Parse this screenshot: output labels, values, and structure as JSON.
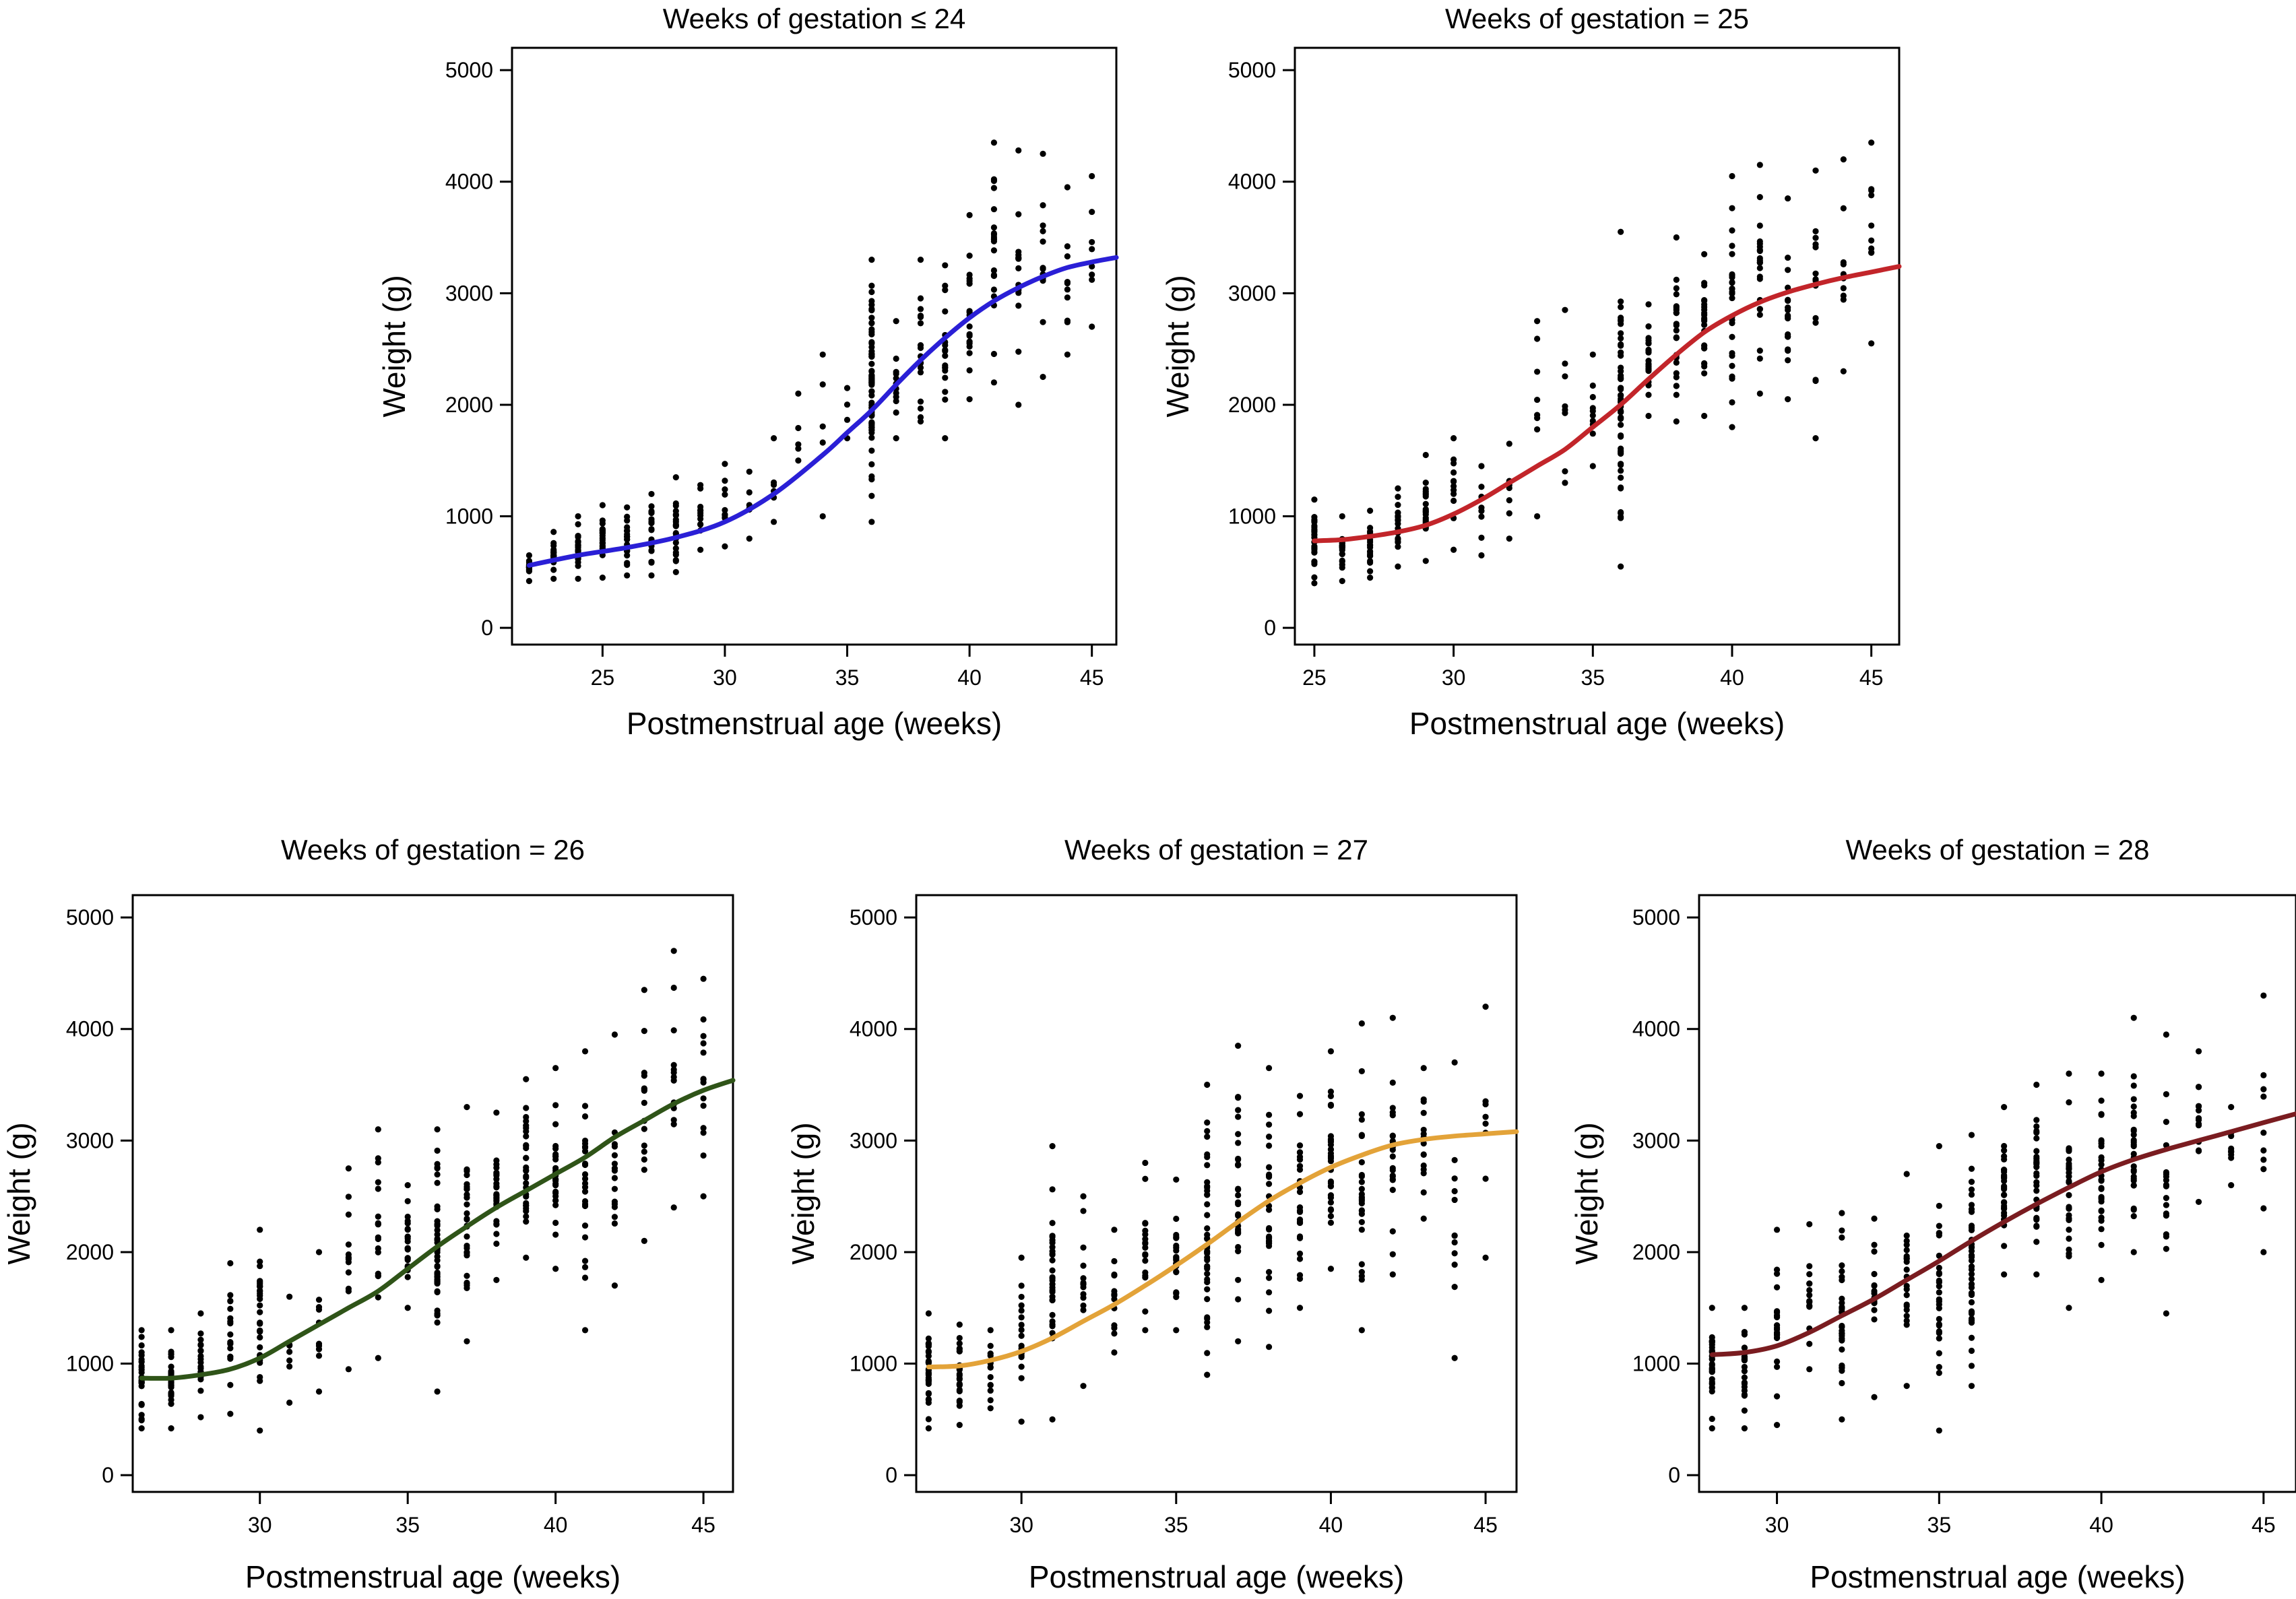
{
  "figure": {
    "accent_colors": [
      "#2a1fd6",
      "#c2252a",
      "#2f5418",
      "#e3a339",
      "#7a1c20"
    ]
  },
  "chart_data": [
    {
      "type": "scatter",
      "title": "Weeks of gestation ≤ 24",
      "xlabel": "Postmenstrual age (weeks)",
      "ylabel": "Weight (g)",
      "xlim": [
        21.3,
        46
      ],
      "ylim": [
        -150,
        5200
      ],
      "xticks": [
        25,
        30,
        35,
        40,
        45
      ],
      "yticks": [
        0,
        1000,
        2000,
        3000,
        4000,
        5000
      ],
      "fit_color": "#2a1fd6",
      "start_week": 22,
      "scatter_bins": [
        {
          "x": 22,
          "min": 420,
          "max": 650,
          "n": 20
        },
        {
          "x": 23,
          "min": 440,
          "max": 860,
          "n": 22
        },
        {
          "x": 24,
          "min": 440,
          "max": 1000,
          "n": 24
        },
        {
          "x": 25,
          "min": 450,
          "max": 1100,
          "n": 24
        },
        {
          "x": 26,
          "min": 470,
          "max": 1080,
          "n": 22
        },
        {
          "x": 27,
          "min": 470,
          "max": 1200,
          "n": 20
        },
        {
          "x": 28,
          "min": 500,
          "max": 1350,
          "n": 22
        },
        {
          "x": 29,
          "min": 700,
          "max": 1280,
          "n": 12
        },
        {
          "x": 30,
          "min": 730,
          "max": 1470,
          "n": 10
        },
        {
          "x": 31,
          "min": 800,
          "max": 1400,
          "n": 6
        },
        {
          "x": 32,
          "min": 950,
          "max": 1700,
          "n": 6
        },
        {
          "x": 33,
          "min": 1500,
          "max": 2100,
          "n": 5
        },
        {
          "x": 34,
          "min": 1000,
          "max": 2450,
          "n": 5
        },
        {
          "x": 35,
          "min": 1700,
          "max": 2150,
          "n": 4
        },
        {
          "x": 36,
          "min": 950,
          "max": 3300,
          "n": 70
        },
        {
          "x": 37,
          "min": 1700,
          "max": 2750,
          "n": 12
        },
        {
          "x": 38,
          "min": 1850,
          "max": 3300,
          "n": 18
        },
        {
          "x": 39,
          "min": 1700,
          "max": 3250,
          "n": 18
        },
        {
          "x": 40,
          "min": 2050,
          "max": 3700,
          "n": 18
        },
        {
          "x": 41,
          "min": 2200,
          "max": 4350,
          "n": 22
        },
        {
          "x": 42,
          "min": 2000,
          "max": 4280,
          "n": 16
        },
        {
          "x": 43,
          "min": 2250,
          "max": 4250,
          "n": 12
        },
        {
          "x": 44,
          "min": 2450,
          "max": 3950,
          "n": 10
        },
        {
          "x": 45,
          "min": 2700,
          "max": 4050,
          "n": 8
        }
      ],
      "series": [
        {
          "name": "fitted curve",
          "x": [
            22,
            24,
            26,
            28,
            30,
            32,
            34,
            35,
            36,
            37,
            38,
            39,
            40,
            41,
            42,
            43,
            44,
            45,
            46
          ],
          "y": [
            560,
            650,
            720,
            810,
            950,
            1200,
            1550,
            1750,
            1950,
            2180,
            2400,
            2600,
            2780,
            2930,
            3050,
            3150,
            3230,
            3280,
            3320
          ]
        }
      ]
    },
    {
      "type": "scatter",
      "title": "Weeks of gestation =  25",
      "xlabel": "Postmenstrual age (weeks)",
      "ylabel": "Weight (g)",
      "xlim": [
        24.3,
        46
      ],
      "ylim": [
        -150,
        5200
      ],
      "xticks": [
        25,
        30,
        35,
        40,
        45
      ],
      "yticks": [
        0,
        1000,
        2000,
        3000,
        4000,
        5000
      ],
      "fit_color": "#c2252a",
      "start_week": 25,
      "scatter_bins": [
        {
          "x": 25,
          "min": 400,
          "max": 1150,
          "n": 28
        },
        {
          "x": 26,
          "min": 420,
          "max": 1000,
          "n": 22
        },
        {
          "x": 27,
          "min": 450,
          "max": 1050,
          "n": 20
        },
        {
          "x": 28,
          "min": 550,
          "max": 1250,
          "n": 18
        },
        {
          "x": 29,
          "min": 600,
          "max": 1550,
          "n": 24
        },
        {
          "x": 30,
          "min": 700,
          "max": 1700,
          "n": 12
        },
        {
          "x": 31,
          "min": 650,
          "max": 1450,
          "n": 8
        },
        {
          "x": 32,
          "min": 800,
          "max": 1650,
          "n": 8
        },
        {
          "x": 33,
          "min": 1000,
          "max": 2750,
          "n": 8
        },
        {
          "x": 34,
          "min": 1300,
          "max": 2850,
          "n": 8
        },
        {
          "x": 35,
          "min": 1450,
          "max": 2450,
          "n": 10
        },
        {
          "x": 36,
          "min": 550,
          "max": 3550,
          "n": 55
        },
        {
          "x": 37,
          "min": 1900,
          "max": 2900,
          "n": 22
        },
        {
          "x": 38,
          "min": 1850,
          "max": 3500,
          "n": 24
        },
        {
          "x": 39,
          "min": 1900,
          "max": 3350,
          "n": 24
        },
        {
          "x": 40,
          "min": 1800,
          "max": 4050,
          "n": 26
        },
        {
          "x": 41,
          "min": 2100,
          "max": 4150,
          "n": 22
        },
        {
          "x": 42,
          "min": 2050,
          "max": 3850,
          "n": 18
        },
        {
          "x": 43,
          "min": 1700,
          "max": 4100,
          "n": 14
        },
        {
          "x": 44,
          "min": 2300,
          "max": 4200,
          "n": 10
        },
        {
          "x": 45,
          "min": 2550,
          "max": 4350,
          "n": 10
        }
      ],
      "series": [
        {
          "name": "fitted curve",
          "x": [
            25,
            26,
            27,
            28,
            29,
            30,
            31,
            32,
            33,
            34,
            35,
            36,
            37,
            38,
            39,
            40,
            41,
            42,
            43,
            44,
            45,
            46
          ],
          "y": [
            780,
            790,
            820,
            860,
            920,
            1020,
            1150,
            1300,
            1450,
            1600,
            1800,
            2000,
            2230,
            2450,
            2650,
            2800,
            2920,
            3010,
            3080,
            3140,
            3190,
            3240
          ]
        }
      ]
    },
    {
      "type": "scatter",
      "title": "Weeks of gestation =  26",
      "xlabel": "Postmenstrual age (weeks)",
      "ylabel": "Weight (g)",
      "xlim": [
        25.7,
        46
      ],
      "ylim": [
        -150,
        5200
      ],
      "xticks": [
        30,
        35,
        40,
        45
      ],
      "yticks": [
        0,
        1000,
        2000,
        3000,
        4000,
        5000
      ],
      "fit_color": "#2f5418",
      "start_week": 26,
      "scatter_bins": [
        {
          "x": 26,
          "min": 420,
          "max": 1300,
          "n": 30
        },
        {
          "x": 27,
          "min": 420,
          "max": 1300,
          "n": 28
        },
        {
          "x": 28,
          "min": 520,
          "max": 1450,
          "n": 18
        },
        {
          "x": 29,
          "min": 550,
          "max": 1900,
          "n": 18
        },
        {
          "x": 30,
          "min": 400,
          "max": 2200,
          "n": 30
        },
        {
          "x": 31,
          "min": 650,
          "max": 1600,
          "n": 8
        },
        {
          "x": 32,
          "min": 750,
          "max": 2000,
          "n": 10
        },
        {
          "x": 33,
          "min": 950,
          "max": 2750,
          "n": 12
        },
        {
          "x": 34,
          "min": 1050,
          "max": 3100,
          "n": 18
        },
        {
          "x": 35,
          "min": 1500,
          "max": 2600,
          "n": 22
        },
        {
          "x": 36,
          "min": 750,
          "max": 3100,
          "n": 45
        },
        {
          "x": 37,
          "min": 1200,
          "max": 3300,
          "n": 28
        },
        {
          "x": 38,
          "min": 1750,
          "max": 3250,
          "n": 28
        },
        {
          "x": 39,
          "min": 1950,
          "max": 3550,
          "n": 30
        },
        {
          "x": 40,
          "min": 1850,
          "max": 3650,
          "n": 30
        },
        {
          "x": 41,
          "min": 1300,
          "max": 3800,
          "n": 24
        },
        {
          "x": 42,
          "min": 1700,
          "max": 3950,
          "n": 16
        },
        {
          "x": 43,
          "min": 2100,
          "max": 4350,
          "n": 16
        },
        {
          "x": 44,
          "min": 2400,
          "max": 4700,
          "n": 14
        },
        {
          "x": 45,
          "min": 2500,
          "max": 4450,
          "n": 14
        }
      ],
      "series": [
        {
          "name": "fitted curve",
          "x": [
            26,
            27,
            28,
            29,
            30,
            31,
            32,
            33,
            34,
            35,
            36,
            37,
            38,
            39,
            40,
            41,
            42,
            43,
            44,
            45,
            46
          ],
          "y": [
            870,
            870,
            900,
            950,
            1050,
            1200,
            1350,
            1500,
            1650,
            1850,
            2050,
            2230,
            2400,
            2550,
            2700,
            2850,
            3030,
            3180,
            3330,
            3450,
            3540
          ]
        }
      ]
    },
    {
      "type": "scatter",
      "title": "Weeks of gestation  =  27",
      "xlabel": "Postmenstrual age (weeks)",
      "ylabel": "Weight (g)",
      "xlim": [
        26.6,
        46
      ],
      "ylim": [
        -150,
        5200
      ],
      "xticks": [
        30,
        35,
        40,
        45
      ],
      "yticks": [
        0,
        1000,
        2000,
        3000,
        4000,
        5000
      ],
      "fit_color": "#e3a339",
      "start_week": 27,
      "scatter_bins": [
        {
          "x": 27,
          "min": 420,
          "max": 1450,
          "n": 32
        },
        {
          "x": 28,
          "min": 450,
          "max": 1350,
          "n": 24
        },
        {
          "x": 29,
          "min": 600,
          "max": 1300,
          "n": 14
        },
        {
          "x": 30,
          "min": 480,
          "max": 1950,
          "n": 18
        },
        {
          "x": 31,
          "min": 500,
          "max": 2950,
          "n": 30
        },
        {
          "x": 32,
          "min": 800,
          "max": 2500,
          "n": 14
        },
        {
          "x": 33,
          "min": 1100,
          "max": 2200,
          "n": 14
        },
        {
          "x": 34,
          "min": 1300,
          "max": 2800,
          "n": 18
        },
        {
          "x": 35,
          "min": 1300,
          "max": 2650,
          "n": 24
        },
        {
          "x": 36,
          "min": 900,
          "max": 3500,
          "n": 40
        },
        {
          "x": 37,
          "min": 1200,
          "max": 3850,
          "n": 30
        },
        {
          "x": 38,
          "min": 1150,
          "max": 3650,
          "n": 28
        },
        {
          "x": 39,
          "min": 1500,
          "max": 3400,
          "n": 28
        },
        {
          "x": 40,
          "min": 1850,
          "max": 3800,
          "n": 30
        },
        {
          "x": 41,
          "min": 1300,
          "max": 4050,
          "n": 26
        },
        {
          "x": 42,
          "min": 1800,
          "max": 4100,
          "n": 24
        },
        {
          "x": 43,
          "min": 2300,
          "max": 3650,
          "n": 16
        },
        {
          "x": 44,
          "min": 1050,
          "max": 3700,
          "n": 12
        },
        {
          "x": 45,
          "min": 1950,
          "max": 4200,
          "n": 8
        }
      ],
      "series": [
        {
          "name": "fitted curve",
          "x": [
            27,
            28,
            29,
            30,
            31,
            32,
            33,
            34,
            35,
            36,
            37,
            38,
            39,
            40,
            41,
            42,
            43,
            44,
            45,
            46
          ],
          "y": [
            970,
            980,
            1030,
            1110,
            1230,
            1380,
            1530,
            1700,
            1880,
            2070,
            2270,
            2460,
            2620,
            2760,
            2870,
            2960,
            3010,
            3040,
            3060,
            3080
          ]
        }
      ]
    },
    {
      "type": "scatter",
      "title": "Weeks of gestation  =  28",
      "xlabel": "Postmenstrual age (weeks)",
      "ylabel": "Weight (g)",
      "xlim": [
        27.6,
        46
      ],
      "ylim": [
        -150,
        5200
      ],
      "xticks": [
        30,
        35,
        40,
        45
      ],
      "yticks": [
        0,
        1000,
        2000,
        3000,
        4000,
        5000
      ],
      "fit_color": "#7a1c20",
      "start_week": 28,
      "scatter_bins": [
        {
          "x": 28,
          "min": 420,
          "max": 1500,
          "n": 32
        },
        {
          "x": 29,
          "min": 420,
          "max": 1500,
          "n": 24
        },
        {
          "x": 30,
          "min": 450,
          "max": 2200,
          "n": 22
        },
        {
          "x": 31,
          "min": 950,
          "max": 2250,
          "n": 16
        },
        {
          "x": 32,
          "min": 500,
          "max": 2350,
          "n": 32
        },
        {
          "x": 33,
          "min": 700,
          "max": 2300,
          "n": 16
        },
        {
          "x": 34,
          "min": 800,
          "max": 2700,
          "n": 22
        },
        {
          "x": 35,
          "min": 400,
          "max": 2950,
          "n": 28
        },
        {
          "x": 36,
          "min": 800,
          "max": 3050,
          "n": 40
        },
        {
          "x": 37,
          "min": 1800,
          "max": 3300,
          "n": 30
        },
        {
          "x": 38,
          "min": 1800,
          "max": 3500,
          "n": 30
        },
        {
          "x": 39,
          "min": 1500,
          "max": 3600,
          "n": 30
        },
        {
          "x": 40,
          "min": 1750,
          "max": 3600,
          "n": 28
        },
        {
          "x": 41,
          "min": 2000,
          "max": 4100,
          "n": 28
        },
        {
          "x": 42,
          "min": 1450,
          "max": 3950,
          "n": 18
        },
        {
          "x": 43,
          "min": 2450,
          "max": 3800,
          "n": 14
        },
        {
          "x": 44,
          "min": 2600,
          "max": 3300,
          "n": 10
        },
        {
          "x": 45,
          "min": 2000,
          "max": 4300,
          "n": 10
        }
      ],
      "series": [
        {
          "name": "fitted curve",
          "x": [
            28,
            29,
            30,
            31,
            32,
            33,
            34,
            35,
            36,
            37,
            38,
            39,
            40,
            41,
            42,
            43,
            44,
            45,
            46
          ],
          "y": [
            1080,
            1100,
            1160,
            1280,
            1430,
            1580,
            1750,
            1920,
            2100,
            2270,
            2430,
            2580,
            2720,
            2830,
            2920,
            3000,
            3080,
            3160,
            3240
          ]
        }
      ]
    }
  ]
}
